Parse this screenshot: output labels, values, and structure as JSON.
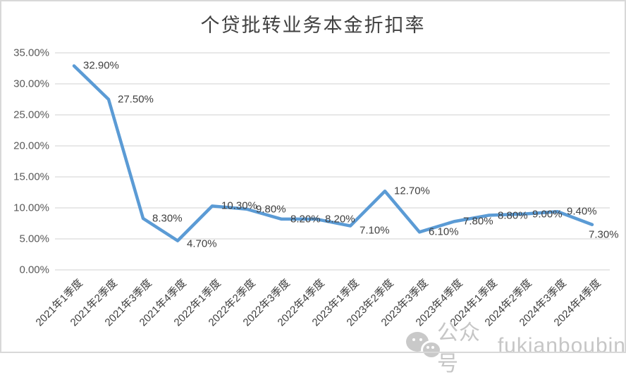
{
  "chart_data": {
    "type": "line",
    "title": "个贷批转业务本金折扣率",
    "categories": [
      "2021年1季度",
      "2021年2季度",
      "2021年3季度",
      "2021年4季度",
      "2022年1季度",
      "2022年2季度",
      "2022年3季度",
      "2022年4季度",
      "2023年1季度",
      "2023年2季度",
      "2023年3季度",
      "2023年4季度",
      "2024年1季度",
      "2024年2季度",
      "2024年3季度",
      "2024年4季度"
    ],
    "values": [
      32.9,
      27.5,
      8.3,
      4.7,
      10.3,
      9.8,
      8.2,
      8.2,
      7.1,
      12.7,
      6.1,
      7.8,
      8.8,
      9.0,
      9.4,
      7.3
    ],
    "data_labels": [
      "32.90%",
      "27.50%",
      "8.30%",
      "4.70%",
      "10.30%",
      "9.80%",
      "8.20%",
      "8.20%",
      "7.10%",
      "12.70%",
      "6.10%",
      "7.80%",
      "8.80%",
      "9.00%",
      "9.40%",
      "7.30%"
    ],
    "y_ticks": [
      "35.00%",
      "30.00%",
      "25.00%",
      "20.00%",
      "15.00%",
      "10.00%",
      "5.00%",
      "0.00%"
    ],
    "ylim": [
      0,
      35
    ],
    "y_tick_step": 5,
    "xlabel": "",
    "ylabel": "",
    "grid": true,
    "legend_position": "none",
    "line_color": "#5B9BD5",
    "gridline_color": "#D9D9D9"
  },
  "watermark": {
    "icon": "wechat-icon",
    "label": "公众号",
    "account": "fukianboubin"
  }
}
